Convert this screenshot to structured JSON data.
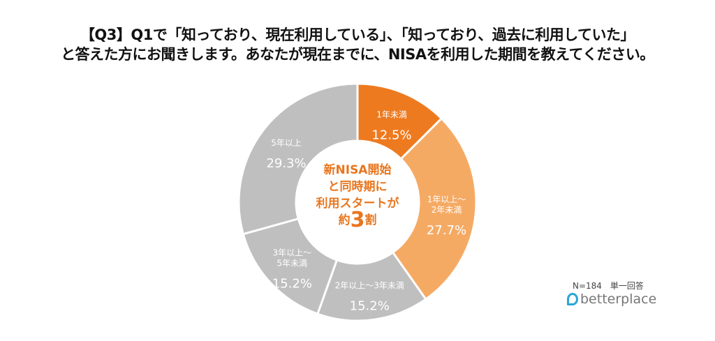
{
  "chart_data": {
    "type": "pie",
    "donut": true,
    "title": [
      "【Q3】Q1で「知っており、現在利用している」、「知っており、過去に利用していた」",
      "と答えた方にお聞きします。あなたが現在までに、NISAを利用した期間を教えてください。"
    ],
    "categories": [
      "1年未満",
      "1年以上～2年未満",
      "2年以上～3年未満",
      "3年以上～5年未満",
      "5年以上"
    ],
    "label_lines": [
      [
        "1年未満"
      ],
      [
        "1年以上～",
        "2年未満"
      ],
      [
        "2年以上～3年未満"
      ],
      [
        "3年以上～",
        "5年未満"
      ],
      [
        "5年以上"
      ]
    ],
    "values": [
      12.5,
      27.7,
      15.2,
      15.2,
      29.3
    ],
    "value_labels": [
      "12.5%",
      "27.7%",
      "15.2%",
      "15.2%",
      "29.3%"
    ],
    "colors": [
      "#EE7A1F",
      "#F5AA64",
      "#BFBFBF",
      "#BFBFBF",
      "#BFBFBF"
    ],
    "start": "top, clockwise",
    "center_text": {
      "line1": "新NISA開始",
      "line2": "と同時期に",
      "line3": "利用スタートが",
      "line4_pre": "約",
      "line4_big": "3",
      "line4_post": "割"
    },
    "note": "N=184　単一回答"
  },
  "logo": "betterplace"
}
